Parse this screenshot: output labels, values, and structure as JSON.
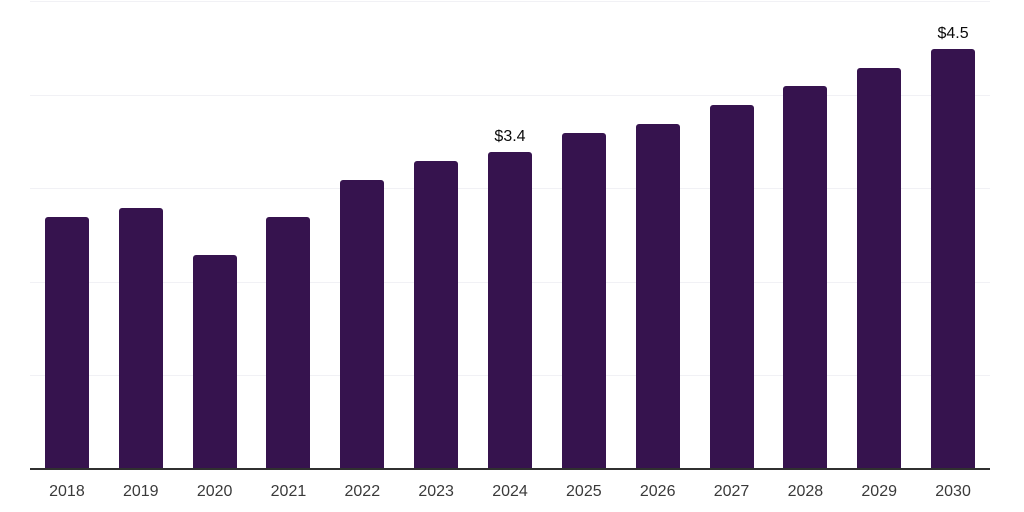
{
  "chart_data": {
    "type": "bar",
    "title": "",
    "xlabel": "",
    "ylabel": "",
    "categories": [
      "2018",
      "2019",
      "2020",
      "2021",
      "2022",
      "2023",
      "2024",
      "2025",
      "2026",
      "2027",
      "2028",
      "2029",
      "2030"
    ],
    "values": [
      2.7,
      2.8,
      2.3,
      2.7,
      3.1,
      3.3,
      3.4,
      3.6,
      3.7,
      3.9,
      4.1,
      4.3,
      4.5
    ],
    "data_labels": [
      "",
      "",
      "",
      "",
      "",
      "",
      "$3.4",
      "",
      "",
      "",
      "",
      "",
      "$4.5"
    ],
    "ylim": [
      0,
      5
    ],
    "gridline_interval": 1,
    "grid": true,
    "legend_position": "none",
    "colors": {
      "bar": "#36134e",
      "gridline": "#f1f1f5",
      "axis_line": "#303030",
      "tick_label": "#3a3a3a",
      "value_label": "#0b0b0b",
      "background": "#ffffff"
    }
  }
}
